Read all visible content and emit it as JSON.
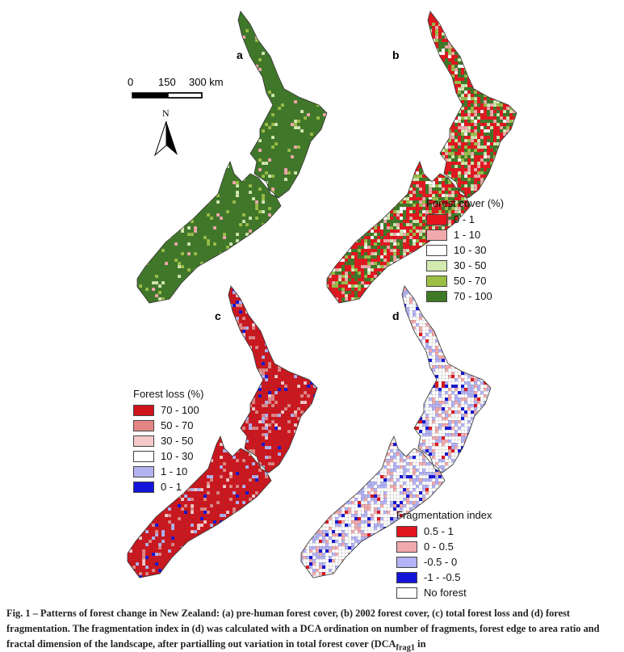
{
  "panels": [
    {
      "label": "a"
    },
    {
      "label": "b"
    },
    {
      "label": "c"
    },
    {
      "label": "d"
    }
  ],
  "scale_bar": {
    "ticks": [
      "0",
      "150",
      "300 km"
    ],
    "north_label": "N"
  },
  "legend_cover": {
    "title": "Forest cover (%)",
    "items": [
      {
        "label": "0 - 1",
        "color": "#e8141c"
      },
      {
        "label": "1 - 10",
        "color": "#f2a9ab"
      },
      {
        "label": "10 - 30",
        "color": "#ffffff"
      },
      {
        "label": "30 - 50",
        "color": "#d3eab0"
      },
      {
        "label": "50 - 70",
        "color": "#9bbf45"
      },
      {
        "label": "70 - 100",
        "color": "#3e7a26"
      }
    ]
  },
  "legend_loss": {
    "title": "Forest loss (%)",
    "items": [
      {
        "label": "70 - 100",
        "color": "#d0141c"
      },
      {
        "label": "50 - 70",
        "color": "#e48585"
      },
      {
        "label": "30 - 50",
        "color": "#f5c9c9"
      },
      {
        "label": "10 - 30",
        "color": "#ffffff"
      },
      {
        "label": "1 - 10",
        "color": "#b3b3f0"
      },
      {
        "label": "0 - 1",
        "color": "#1414d8"
      }
    ]
  },
  "legend_frag": {
    "title": "Fragmentation index",
    "items": [
      {
        "label": "0.5 - 1",
        "color": "#e0141c"
      },
      {
        "label": "0 - 0.5",
        "color": "#f0aaae"
      },
      {
        "label": "-0.5 - 0",
        "color": "#b3b3f5"
      },
      {
        "label": "-1 - -0.5",
        "color": "#1414d8"
      },
      {
        "label": "No forest",
        "color": "#ffffff"
      }
    ]
  },
  "caption": {
    "prefix": "Fig. 1 – ",
    "text": "Patterns of forest change in New Zealand: (a) pre-human forest cover, (b) 2002 forest cover, (c) total forest loss and (d) forest fragmentation. The fragmentation index in (d) was calculated with a DCA ordination on number of fragments, forest edge to area ratio and fractal dimension of the landscape, after partialling out variation in total forest cover (DCA",
    "subscript": "frag1",
    "suffix": " in"
  }
}
